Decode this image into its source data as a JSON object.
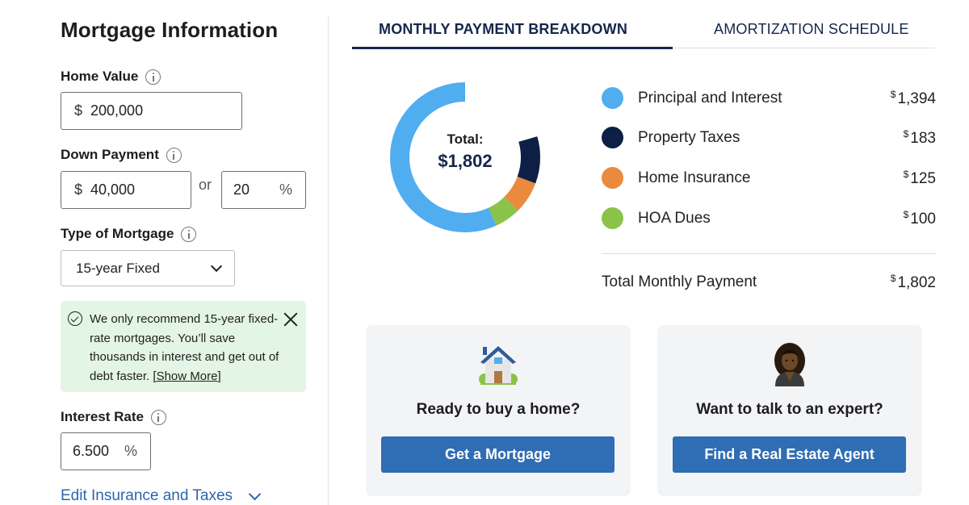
{
  "left": {
    "title": "Mortgage Information",
    "home_value": {
      "label": "Home Value",
      "prefix": "$",
      "value": "200,000"
    },
    "down_payment": {
      "label": "Down Payment",
      "prefix": "$",
      "value": "40,000",
      "or": "or",
      "percent_value": "20",
      "percent_suffix": "%"
    },
    "mortgage_type": {
      "label": "Type of Mortgage",
      "selected": "15-year Fixed"
    },
    "alert": {
      "text": "We only recommend 15-year fixed-rate mortgages. You’ll save thousands in interest and get out of debt faster. ",
      "link_prefix": "[",
      "link": "Show More",
      "link_suffix": "]"
    },
    "interest_rate": {
      "label": "Interest Rate",
      "value": "6.500",
      "suffix": "%"
    },
    "edit_link": "Edit Insurance and Taxes"
  },
  "tabs": [
    {
      "label": "MONTHLY PAYMENT BREAKDOWN",
      "active": true
    },
    {
      "label": "AMORTIZATION SCHEDULE",
      "active": false
    }
  ],
  "donut": {
    "total_label": "Total:",
    "total_value": "$1,802"
  },
  "breakdown": [
    {
      "label": "Principal and Interest",
      "currency": "$",
      "amount": "1,394",
      "value": 1394,
      "color": "#4fadf0"
    },
    {
      "label": "Property Taxes",
      "currency": "$",
      "amount": "183",
      "value": 183,
      "color": "#0e1f45"
    },
    {
      "label": "Home Insurance",
      "currency": "$",
      "amount": "125",
      "value": 125,
      "color": "#e98a3e"
    },
    {
      "label": "HOA Dues",
      "currency": "$",
      "amount": "100",
      "value": 100,
      "color": "#8bc34a"
    }
  ],
  "total": {
    "label": "Total Monthly Payment",
    "currency": "$",
    "amount": "1,802"
  },
  "cards": [
    {
      "icon": "house-icon",
      "title": "Ready to buy a home?",
      "button": "Get a Mortgage"
    },
    {
      "icon": "expert-avatar-icon",
      "title": "Want to talk to an expert?",
      "button": "Find a Real Estate Agent"
    }
  ]
}
